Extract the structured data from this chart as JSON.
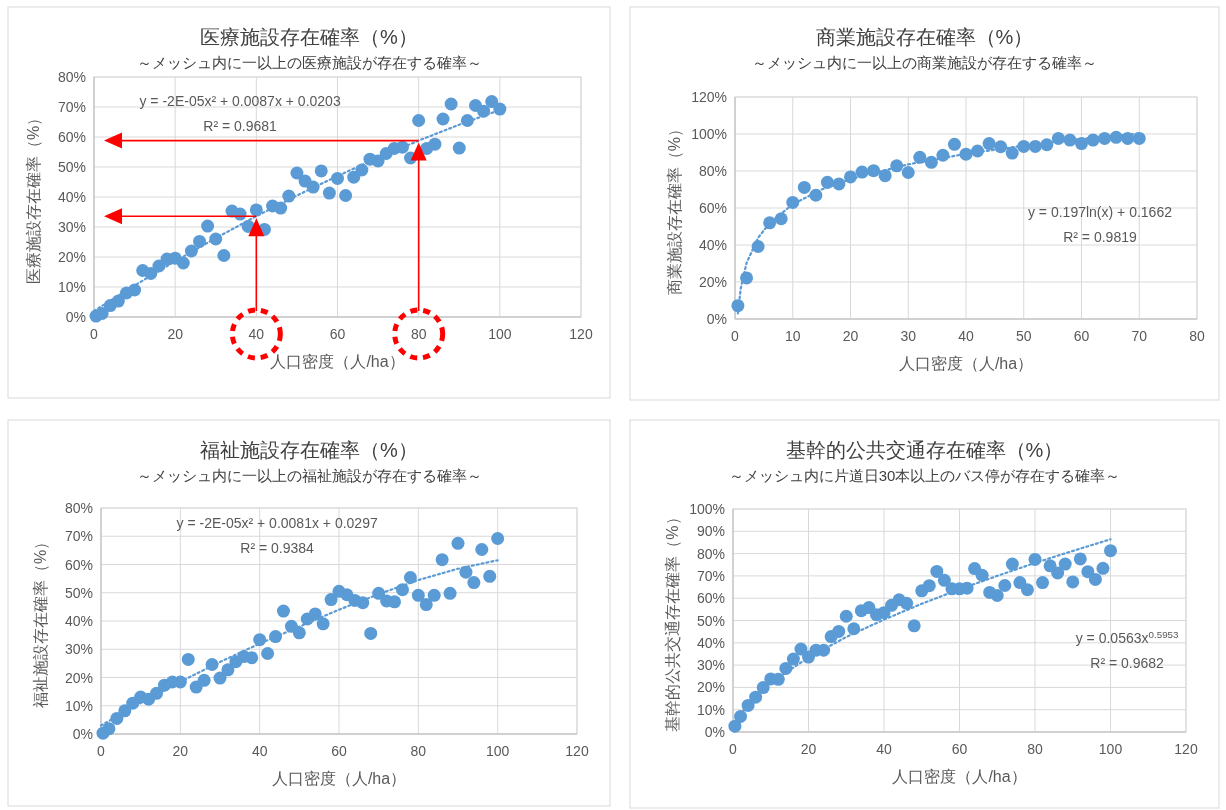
{
  "chart_data": [
    {
      "type": "scatter",
      "title": "医療施設存在確率（%）",
      "subtitle": "～メッシュ内に一以上の医療施設が存在する確率～",
      "xlabel": "人口密度（人/ha）",
      "ylabel": "医療施設存在確率（%）",
      "annotations": [
        "y = -2E-05x² + 0.0087x + 0.0203",
        "R² = 0.9681"
      ],
      "xlim": [
        0,
        120
      ],
      "xticks": [
        0,
        20,
        40,
        60,
        80,
        100,
        120
      ],
      "ylim": [
        0,
        80
      ],
      "yticks": [
        {
          "value": 0,
          "label": "0%"
        },
        {
          "value": 10,
          "label": "10%"
        },
        {
          "value": 20,
          "label": "20%"
        },
        {
          "value": 30,
          "label": "30%"
        },
        {
          "value": 40,
          "label": "40%"
        },
        {
          "value": 50,
          "label": "50%"
        },
        {
          "value": 60,
          "label": "60%"
        },
        {
          "value": 70,
          "label": "70%"
        },
        {
          "value": 80,
          "label": "80%"
        }
      ],
      "grid": true,
      "marker": "circle",
      "series": [
        {
          "type": "scatter",
          "color": "#5b9bd5",
          "x": [
            0.5,
            2,
            4,
            6,
            8,
            10,
            12,
            14,
            16,
            18,
            20,
            22,
            24,
            26,
            28,
            30,
            32,
            34,
            36,
            38,
            40,
            42,
            44,
            46,
            48,
            50,
            52,
            54,
            56,
            58,
            60,
            62,
            64,
            66,
            68,
            70,
            72,
            74,
            76,
            78,
            80,
            82,
            84,
            86,
            88,
            90,
            92,
            94,
            96,
            98,
            100
          ],
          "values": [
            0.3,
            1.2,
            3.8,
            5.3,
            8,
            9,
            15.5,
            14.5,
            17,
            19.3,
            19.6,
            18,
            22,
            25.2,
            30.3,
            26,
            20.5,
            35.3,
            34.3,
            30.2,
            35.7,
            29.2,
            37,
            36.3,
            40.3,
            48,
            45.3,
            43.3,
            48.7,
            41.3,
            46.2,
            40.5,
            46.6,
            49,
            52.6,
            52,
            54.5,
            56.2,
            56.6,
            53,
            65.5,
            56.2,
            57.6,
            66,
            71,
            56.3,
            65.5,
            70.5,
            68.6,
            71.8,
            69.3
          ]
        },
        {
          "type": "line",
          "color": "#5b9bd5",
          "line_style": "dotted",
          "marker": "none",
          "x": [
            0,
            10,
            20,
            30,
            40,
            50,
            60,
            70,
            80,
            90,
            100
          ],
          "values": [
            2.0,
            10.5,
            18.6,
            26.3,
            33.6,
            40.5,
            47.0,
            53.1,
            58.8,
            64.1,
            69.0
          ]
        }
      ]
    },
    {
      "type": "scatter",
      "title": "商業施設存在確率（%）",
      "subtitle": "～メッシュ内に一以上の商業施設が存在する確率～",
      "xlabel": "人口密度（人/ha）",
      "ylabel": "商業施設存在確率（%）",
      "annotations": [
        "y = 0.197ln(x) + 0.1662",
        "R² = 0.9819"
      ],
      "xlim": [
        0,
        80
      ],
      "xticks": [
        0,
        10,
        20,
        30,
        40,
        50,
        60,
        70,
        80
      ],
      "ylim": [
        0,
        120
      ],
      "yticks": [
        {
          "value": 0,
          "label": "0%"
        },
        {
          "value": 20,
          "label": "20%"
        },
        {
          "value": 40,
          "label": "40%"
        },
        {
          "value": 60,
          "label": "60%"
        },
        {
          "value": 80,
          "label": "80%"
        },
        {
          "value": 100,
          "label": "100%"
        },
        {
          "value": 120,
          "label": "120%"
        }
      ],
      "grid": true,
      "marker": "circle",
      "series": [
        {
          "type": "scatter",
          "color": "#5b9bd5",
          "x": [
            0.5,
            2,
            4,
            6,
            8,
            10,
            12,
            14,
            16,
            18,
            20,
            22,
            24,
            26,
            28,
            30,
            32,
            34,
            36,
            38,
            40,
            42,
            44,
            46,
            48,
            50,
            52,
            54,
            56,
            58,
            60,
            62,
            64,
            66,
            68,
            70
          ],
          "values": [
            7.2,
            22.2,
            39.2,
            52,
            54.2,
            63,
            71.1,
            66.9,
            73.9,
            73,
            76.8,
            79.4,
            80.2,
            77.5,
            82.8,
            79.2,
            87.4,
            84.7,
            88.5,
            94.4,
            89.1,
            90.8,
            94.8,
            93.1,
            89.7,
            93.3,
            93.3,
            94.2,
            97.6,
            96.7,
            94.8,
            96.7,
            97.6,
            98.2,
            97.6,
            97.6
          ]
        },
        {
          "type": "line",
          "color": "#5b9bd5",
          "line_style": "dotted",
          "marker": "none",
          "x": [
            0.5,
            1,
            2,
            4,
            6,
            10,
            15,
            20,
            30,
            40,
            50,
            60,
            70
          ],
          "values": [
            3.0,
            16.6,
            30.3,
            43.9,
            51.9,
            62.0,
            70.0,
            75.6,
            83.6,
            89.3,
            93.7,
            97.3,
            100.3
          ]
        }
      ]
    },
    {
      "type": "scatter",
      "title": "福祉施設存在確率（%）",
      "subtitle": "～メッシュ内に一以上の福祉施設が存在する確率～",
      "xlabel": "人口密度（人/ha）",
      "ylabel": "福祉施設存在確率（%）",
      "annotations": [
        "y = -2E-05x² + 0.0081x + 0.0297",
        "R² = 0.9384"
      ],
      "xlim": [
        0,
        120
      ],
      "xticks": [
        0,
        20,
        40,
        60,
        80,
        100,
        120
      ],
      "ylim": [
        0,
        80
      ],
      "yticks": [
        {
          "value": 0,
          "label": "0%"
        },
        {
          "value": 10,
          "label": "10%"
        },
        {
          "value": 20,
          "label": "20%"
        },
        {
          "value": 30,
          "label": "30%"
        },
        {
          "value": 40,
          "label": "40%"
        },
        {
          "value": 50,
          "label": "50%"
        },
        {
          "value": 60,
          "label": "60%"
        },
        {
          "value": 70,
          "label": "70%"
        },
        {
          "value": 80,
          "label": "80%"
        }
      ],
      "grid": true,
      "marker": "circle",
      "series": [
        {
          "type": "scatter",
          "color": "#5b9bd5",
          "x": [
            0.5,
            2,
            4,
            6,
            8,
            10,
            12,
            14,
            16,
            18,
            20,
            22,
            24,
            26,
            28,
            30,
            32,
            34,
            36,
            38,
            40,
            42,
            44,
            46,
            48,
            50,
            52,
            54,
            56,
            58,
            60,
            62,
            64,
            66,
            68,
            70,
            72,
            74,
            76,
            78,
            80,
            82,
            84,
            86,
            88,
            90,
            92,
            94,
            96,
            98,
            100
          ],
          "values": [
            0.3,
            1.9,
            5.5,
            8.2,
            10.9,
            13.1,
            12.3,
            14.4,
            17.3,
            18.4,
            18.4,
            26.4,
            16.6,
            19,
            24.6,
            19.8,
            22.7,
            25.6,
            27.4,
            27,
            33.4,
            28.5,
            34.5,
            43.5,
            38.1,
            35.8,
            40.7,
            42.5,
            39,
            47.6,
            50.5,
            49.3,
            47.3,
            46.5,
            35.6,
            49.8,
            47.1,
            46.8,
            51.1,
            55.4,
            49.1,
            45.8,
            49.1,
            61.7,
            49.8,
            67.5,
            57.3,
            53.6,
            65.3,
            55.8,
            69.2
          ]
        },
        {
          "type": "line",
          "color": "#5b9bd5",
          "line_style": "dotted",
          "marker": "none",
          "x": [
            0,
            10,
            20,
            30,
            40,
            50,
            60,
            70,
            80,
            90,
            100
          ],
          "values": [
            3,
            11,
            18.5,
            25.5,
            32,
            38,
            44,
            49.5,
            54.5,
            58.5,
            61.5
          ]
        }
      ]
    },
    {
      "type": "scatter",
      "title": "基幹的公共交通存在確率（%）",
      "subtitle": "～メッシュ内に片道日30本以上のバス停が存在する確率～",
      "xlabel": "人口密度（人/ha）",
      "ylabel": "基幹的公共交通存在確率（%）",
      "annotations": [
        "y = 0.0563x$^{0.5953}$",
        "R² = 0.9682"
      ],
      "xlim": [
        0,
        120
      ],
      "xticks": [
        0,
        20,
        40,
        60,
        80,
        100,
        120
      ],
      "ylim": [
        0,
        100
      ],
      "yticks": [
        {
          "value": 0,
          "label": "0%"
        },
        {
          "value": 10,
          "label": "10%"
        },
        {
          "value": 20,
          "label": "20%"
        },
        {
          "value": 30,
          "label": "30%"
        },
        {
          "value": 40,
          "label": "40%"
        },
        {
          "value": 50,
          "label": "50%"
        },
        {
          "value": 60,
          "label": "60%"
        },
        {
          "value": 70,
          "label": "70%"
        },
        {
          "value": 80,
          "label": "80%"
        },
        {
          "value": 90,
          "label": "90%"
        },
        {
          "value": 100,
          "label": "100%"
        }
      ],
      "grid": true,
      "marker": "circle",
      "series": [
        {
          "type": "scatter",
          "color": "#5b9bd5",
          "x": [
            0.5,
            2,
            4,
            6,
            8,
            10,
            12,
            14,
            16,
            18,
            20,
            22,
            24,
            26,
            28,
            30,
            32,
            34,
            36,
            38,
            40,
            42,
            44,
            46,
            48,
            50,
            52,
            54,
            56,
            58,
            60,
            62,
            64,
            66,
            68,
            70,
            72,
            74,
            76,
            78,
            80,
            82,
            84,
            86,
            88,
            90,
            92,
            94,
            96,
            98,
            100
          ],
          "values": [
            2.6,
            7,
            11.9,
            15.6,
            19.9,
            23.8,
            23.6,
            28.5,
            32.7,
            37.2,
            33.6,
            36.7,
            36.7,
            42.8,
            45.1,
            51.9,
            46.3,
            54.4,
            55.8,
            52.6,
            53.5,
            56.8,
            59.3,
            57.7,
            47.6,
            63.3,
            65.6,
            72,
            68,
            64.2,
            64.2,
            64.5,
            73.3,
            70.3,
            62.6,
            61.2,
            65.7,
            75.3,
            67,
            63.8,
            77.4,
            67,
            74.5,
            71.3,
            75.3,
            67.3,
            77.6,
            71.9,
            68.4,
            73.4,
            81.3
          ]
        },
        {
          "type": "line",
          "color": "#5b9bd5",
          "line_style": "dotted",
          "marker": "none",
          "x": [
            0.5,
            1,
            5,
            10,
            20,
            30,
            40,
            50,
            60,
            70,
            80,
            90,
            100
          ],
          "values": [
            3.7,
            5.6,
            14.5,
            22.2,
            33.4,
            42.6,
            50.4,
            57.5,
            64.0,
            70.0,
            75.8,
            81.2,
            86.4
          ]
        }
      ]
    }
  ]
}
